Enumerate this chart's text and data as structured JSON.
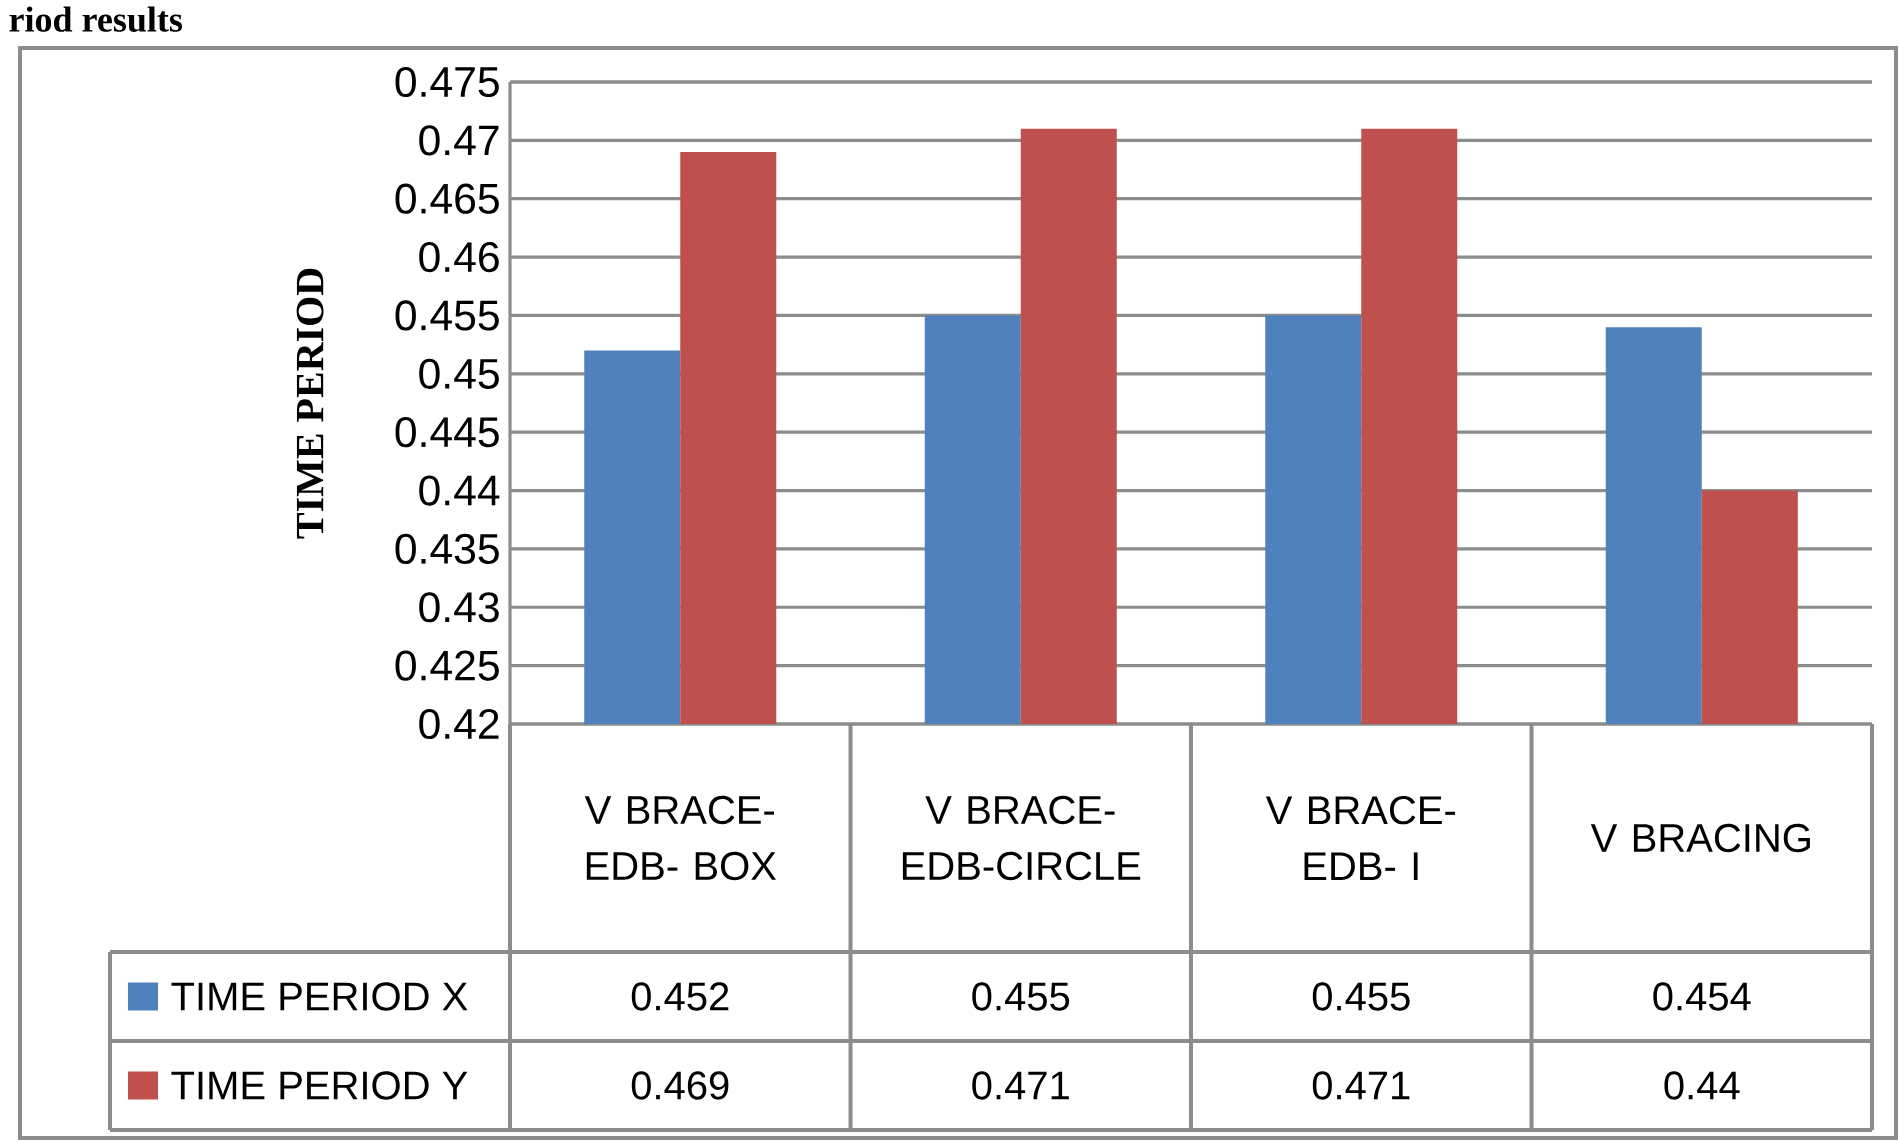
{
  "chart_data": {
    "type": "bar",
    "title": "riod results",
    "ylabel": "TIME PERIOD",
    "categories": [
      "V BRACE-EDB- BOX",
      "V BRACE-EDB-CIRCLE",
      "V BRACE-EDB- I",
      "V BRACING"
    ],
    "series": [
      {
        "name": "TIME PERIOD X",
        "color": "#4f81bd",
        "values": [
          0.452,
          0.455,
          0.455,
          0.454
        ]
      },
      {
        "name": "TIME PERIOD Y",
        "color": "#c0504d",
        "values": [
          0.469,
          0.471,
          0.471,
          0.44
        ]
      }
    ],
    "ylim": [
      0.42,
      0.475
    ],
    "yticks": [
      0.42,
      0.425,
      0.43,
      0.435,
      0.44,
      0.445,
      0.45,
      0.455,
      0.46,
      0.465,
      0.47,
      0.475
    ],
    "grid": "y",
    "legend": "bottom",
    "data_labels": true
  }
}
